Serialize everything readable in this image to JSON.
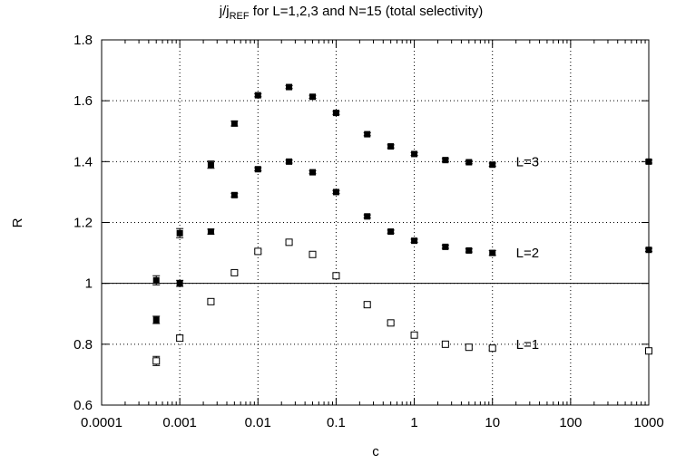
{
  "chart_data": {
    "type": "scatter",
    "title_main": "j/j",
    "title_sub": "REF",
    "title_rest": " for L=1,2,3 and N=15 (total selectivity)",
    "xlabel": "c",
    "ylabel": "R",
    "x_scale": "log",
    "xlim": [
      0.0001,
      1000
    ],
    "ylim": [
      0.6,
      1.8
    ],
    "grid": true,
    "x_ticks": [
      {
        "value": 0.0001,
        "label": "0.0001"
      },
      {
        "value": 0.001,
        "label": "0.001"
      },
      {
        "value": 0.01,
        "label": "0.01"
      },
      {
        "value": 0.1,
        "label": "0.1"
      },
      {
        "value": 1,
        "label": "1"
      },
      {
        "value": 10,
        "label": "10"
      },
      {
        "value": 100,
        "label": "100"
      },
      {
        "value": 1000,
        "label": "1000"
      }
    ],
    "y_ticks": [
      {
        "value": 0.6,
        "label": "0.6"
      },
      {
        "value": 0.8,
        "label": "0.8"
      },
      {
        "value": 1.0,
        "label": "1"
      },
      {
        "value": 1.2,
        "label": "1.2"
      },
      {
        "value": 1.4,
        "label": "1.4"
      },
      {
        "value": 1.6,
        "label": "1.6"
      },
      {
        "value": 1.8,
        "label": "1.8"
      }
    ],
    "reference_line": 1.0,
    "series": [
      {
        "name": "L=3",
        "marker": "filled-square",
        "label_at": [
          20,
          1.4
        ],
        "points": [
          {
            "x": 0.0005,
            "y": 1.01,
            "err": 0.015
          },
          {
            "x": 0.001,
            "y": 1.165,
            "err": 0.015
          },
          {
            "x": 0.0025,
            "y": 1.39,
            "err": 0.012
          },
          {
            "x": 0.005,
            "y": 1.525,
            "err": 0.008
          },
          {
            "x": 0.01,
            "y": 1.618,
            "err": 0.005
          },
          {
            "x": 0.025,
            "y": 1.645,
            "err": 0.005
          },
          {
            "x": 0.05,
            "y": 1.613,
            "err": 0.005
          },
          {
            "x": 0.1,
            "y": 1.56,
            "err": 0.005
          },
          {
            "x": 0.25,
            "y": 1.49,
            "err": 0.005
          },
          {
            "x": 0.5,
            "y": 1.45,
            "err": 0.005
          },
          {
            "x": 1,
            "y": 1.425,
            "err": 0.005
          },
          {
            "x": 2.5,
            "y": 1.405,
            "err": 0.005
          },
          {
            "x": 5,
            "y": 1.398,
            "err": 0.005
          },
          {
            "x": 10,
            "y": 1.39,
            "err": 0.005
          },
          {
            "x": 1000,
            "y": 1.4,
            "err": 0.005
          }
        ]
      },
      {
        "name": "L=2",
        "marker": "filled-square",
        "label_at": [
          20,
          1.1
        ],
        "points": [
          {
            "x": 0.0005,
            "y": 0.88,
            "err": 0.012
          },
          {
            "x": 0.001,
            "y": 1.0,
            "err": 0.01
          },
          {
            "x": 0.0025,
            "y": 1.17,
            "err": 0.008
          },
          {
            "x": 0.005,
            "y": 1.29,
            "err": 0.006
          },
          {
            "x": 0.01,
            "y": 1.375,
            "err": 0.005
          },
          {
            "x": 0.025,
            "y": 1.4,
            "err": 0.005
          },
          {
            "x": 0.05,
            "y": 1.365,
            "err": 0.005
          },
          {
            "x": 0.1,
            "y": 1.3,
            "err": 0.005
          },
          {
            "x": 0.25,
            "y": 1.22,
            "err": 0.005
          },
          {
            "x": 0.5,
            "y": 1.17,
            "err": 0.005
          },
          {
            "x": 1,
            "y": 1.14,
            "err": 0.005
          },
          {
            "x": 2.5,
            "y": 1.12,
            "err": 0.005
          },
          {
            "x": 5,
            "y": 1.108,
            "err": 0.005
          },
          {
            "x": 10,
            "y": 1.1,
            "err": 0.008
          },
          {
            "x": 1000,
            "y": 1.11,
            "err": 0.005
          }
        ]
      },
      {
        "name": "L=1",
        "marker": "open-square",
        "label_at": [
          20,
          0.8
        ],
        "points": [
          {
            "x": 0.0005,
            "y": 0.745,
            "err": 0.015
          },
          {
            "x": 0.001,
            "y": 0.82,
            "err": 0.01
          },
          {
            "x": 0.0025,
            "y": 0.94,
            "err": 0.008
          },
          {
            "x": 0.005,
            "y": 1.035,
            "err": 0.006
          },
          {
            "x": 0.01,
            "y": 1.105,
            "err": 0.006
          },
          {
            "x": 0.025,
            "y": 1.135,
            "err": 0.006
          },
          {
            "x": 0.05,
            "y": 1.095,
            "err": 0.006
          },
          {
            "x": 0.1,
            "y": 1.025,
            "err": 0.008
          },
          {
            "x": 0.25,
            "y": 0.93,
            "err": 0.006
          },
          {
            "x": 0.5,
            "y": 0.87,
            "err": 0.006
          },
          {
            "x": 1,
            "y": 0.83,
            "err": 0.006
          },
          {
            "x": 2.5,
            "y": 0.8,
            "err": 0.005
          },
          {
            "x": 5,
            "y": 0.79,
            "err": 0.005
          },
          {
            "x": 10,
            "y": 0.787,
            "err": 0.006
          },
          {
            "x": 1000,
            "y": 0.778,
            "err": 0.008
          }
        ]
      }
    ]
  }
}
